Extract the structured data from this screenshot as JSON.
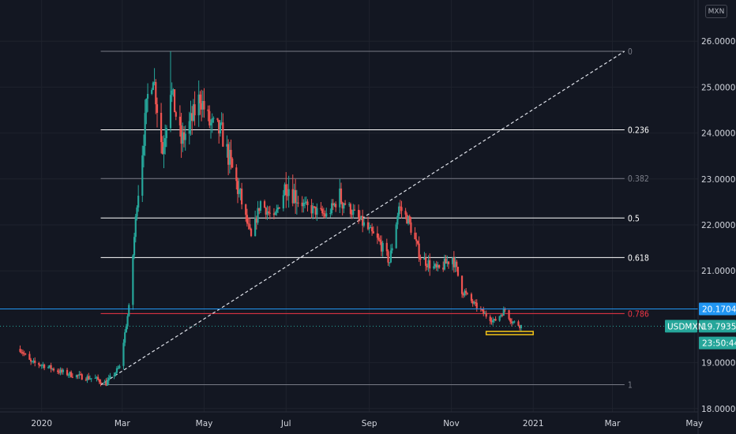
{
  "symbol": "USDMXN",
  "currency": "MXN",
  "chart_data": {
    "type": "candlestick",
    "y_axis": {
      "ticks": [
        26,
        25,
        24,
        23,
        22,
        21,
        19,
        18
      ],
      "tick_labels": [
        "26.00000",
        "25.00000",
        "24.00000",
        "23.00000",
        "22.00000",
        "21.00000",
        "19.00000",
        "18.00000"
      ],
      "ylim": [
        17.85,
        26.5
      ]
    },
    "x_axis": {
      "tick_labels": [
        "2020",
        "Mar",
        "May",
        "Jul",
        "Sep",
        "Nov",
        "2021",
        "Mar",
        "May"
      ]
    },
    "price_path": [
      [
        "2019-12-16",
        19.3
      ],
      [
        "2019-12-24",
        19.0
      ],
      [
        "2020-01-02",
        18.95
      ],
      [
        "2020-01-15",
        18.8
      ],
      [
        "2020-01-29",
        18.7
      ],
      [
        "2020-02-10",
        18.65
      ],
      [
        "2020-02-18",
        18.55
      ],
      [
        "2020-02-28",
        18.9
      ],
      [
        "2020-03-06",
        20.2
      ],
      [
        "2020-03-12",
        22.5
      ],
      [
        "2020-03-20",
        24.8
      ],
      [
        "2020-03-24",
        25.3
      ],
      [
        "2020-03-31",
        23.6
      ],
      [
        "2020-04-06",
        25.0
      ],
      [
        "2020-04-14",
        23.8
      ],
      [
        "2020-04-22",
        24.3
      ],
      [
        "2020-04-28",
        24.8
      ],
      [
        "2020-05-05",
        24.2
      ],
      [
        "2020-05-14",
        24.0
      ],
      [
        "2020-05-26",
        22.8
      ],
      [
        "2020-06-05",
        21.7
      ],
      [
        "2020-06-12",
        22.5
      ],
      [
        "2020-06-22",
        22.1
      ],
      [
        "2020-07-01",
        22.9
      ],
      [
        "2020-07-15",
        22.4
      ],
      [
        "2020-07-31",
        22.2
      ],
      [
        "2020-08-10",
        22.6
      ],
      [
        "2020-08-25",
        22.1
      ],
      [
        "2020-09-09",
        21.6
      ],
      [
        "2020-09-16",
        21.2
      ],
      [
        "2020-09-23",
        22.4
      ],
      [
        "2020-09-30",
        22.1
      ],
      [
        "2020-10-09",
        21.3
      ],
      [
        "2020-10-22",
        21.0
      ],
      [
        "2020-11-02",
        21.3
      ],
      [
        "2020-11-09",
        20.6
      ],
      [
        "2020-11-17",
        20.3
      ],
      [
        "2020-11-26",
        20.05
      ],
      [
        "2020-12-03",
        19.9
      ],
      [
        "2020-12-11",
        20.15
      ],
      [
        "2020-12-16",
        19.9
      ],
      [
        "2020-12-23",
        19.8
      ]
    ],
    "high": {
      "date": "2020-04-06",
      "value": 25.78
    },
    "fibonacci": {
      "start": {
        "date": "2020-02-14",
        "value": 18.52
      },
      "end": {
        "date": "2021-03-10",
        "value": 25.78
      },
      "levels": [
        {
          "ratio": "0",
          "value": 25.78,
          "color": "#787b86"
        },
        {
          "ratio": "0.236",
          "value": 24.07,
          "color": "#ffffff"
        },
        {
          "ratio": "0.382",
          "value": 23.01,
          "color": "#787b86"
        },
        {
          "ratio": "0.5",
          "value": 22.15,
          "color": "#ffffff"
        },
        {
          "ratio": "0.618",
          "value": 21.29,
          "color": "#ffffff"
        },
        {
          "ratio": "0.786",
          "value": 20.07,
          "color": "#f23645"
        },
        {
          "ratio": "1",
          "value": 18.52,
          "color": "#787b86"
        }
      ]
    },
    "horizontal_line": {
      "value": 20.17049,
      "color": "#2196f3"
    },
    "highlight_box": {
      "date_start": "2020-11-27",
      "date_end": "2021-01-01",
      "value_top": 19.68,
      "value_bottom": 19.61,
      "color": "#f5c518"
    },
    "price_tags": [
      {
        "text": "20.17049",
        "value": 20.17049,
        "color": "#2196f3"
      },
      {
        "text": "19.79350",
        "value": 19.7935,
        "color": "#26a69a"
      },
      {
        "text": "23:50:44",
        "value": 19.43,
        "color": "#26a69a"
      }
    ],
    "symbol_tag": {
      "text": "USDMXN",
      "color": "#26a69a"
    },
    "colors": {
      "up": "#26a69a",
      "down": "#ef5350",
      "background": "#131722",
      "axis_text": "#d1d4dc"
    }
  }
}
